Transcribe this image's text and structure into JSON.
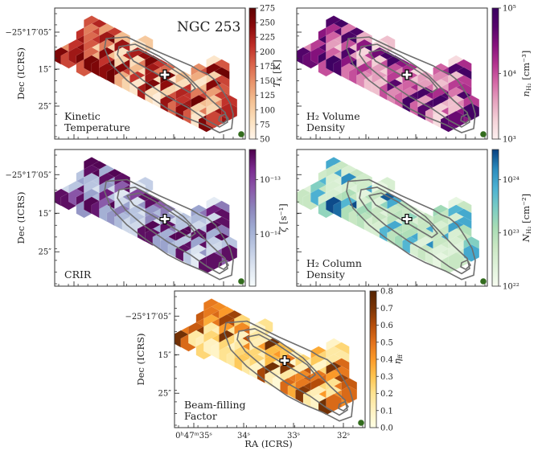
{
  "figure": {
    "object_name": "NGC 253",
    "ylabel": "Dec (ICRS)",
    "xlabel": "RA (ICRS)",
    "dec_ticks": [
      "−25°17′05″",
      "15″",
      "25″"
    ],
    "ra_ticks": [
      "0ʰ47ᵐ35ˢ",
      "34ˢ",
      "33ˢ",
      "32ˢ"
    ]
  },
  "chart_data": [
    {
      "type": "heatmap",
      "id": "tk",
      "title": "Kinetic Temperature",
      "label_lines": [
        "Kinetic",
        "Temperature"
      ],
      "colorbar_label": "T_K [K]",
      "colorbar_label_main": "T",
      "colorbar_label_sub": "K",
      "colorbar_label_unit": " [K]",
      "colormap": [
        "#fff5eb",
        "#fbe0bd",
        "#f4c193",
        "#e9956c",
        "#d9634a",
        "#be2d27",
        "#8b0a0b",
        "#5e0000"
      ],
      "scale": "linear",
      "range": [
        50,
        275
      ],
      "ticks": [
        "50",
        "75",
        "100",
        "125",
        "150",
        "175",
        "200",
        "225",
        "250",
        "275"
      ],
      "cells_values": [
        0.62,
        0.75,
        0.7,
        0.5,
        0.65,
        0.4,
        0.68,
        0.82,
        0.55,
        0.7,
        0.8,
        0.95,
        0.3,
        0.25,
        0.45,
        0.7,
        0.85,
        0.6,
        0.2,
        0.5,
        0.18,
        0.82,
        0.75,
        0.1,
        0.9,
        0.65,
        0.8,
        0.92,
        0.55,
        0.35,
        0.88,
        0.3,
        0.12,
        0.75,
        0.78,
        0.85,
        0.6,
        0.92,
        0.9,
        0.7,
        0.98,
        0.2,
        0.85,
        0.15,
        0.5,
        0.92,
        0.7,
        0.1,
        0.6,
        0.85,
        0.95,
        0.88,
        0.65,
        0.3,
        0.15,
        0.8,
        0.5,
        0.55,
        0.12,
        0.45,
        0.62,
        0.9,
        0.95,
        0.35,
        0.2,
        0.7,
        0.1,
        0.8,
        0.15,
        0.92,
        0.08,
        0.3,
        0.15,
        0.35,
        0.1,
        0.2,
        0.65,
        0.1,
        0.78,
        0.9,
        0.12,
        0.85,
        0.2,
        0.15,
        0.72,
        0.1,
        0.3,
        0.88,
        0.6,
        0.15,
        0.05,
        0.2
      ]
    },
    {
      "type": "heatmap",
      "id": "nh2",
      "title": "H2 Volume Density",
      "label_lines": [
        "H₂ Volume",
        "Density"
      ],
      "colorbar_label": "n_H2 [cm^-3]",
      "colorbar_label_main": "n",
      "colorbar_label_sub": "H₂",
      "colorbar_label_unit": " [cm⁻³]",
      "colormap": [
        "#fdf0ef",
        "#f5d2d8",
        "#e6a4bf",
        "#d56aa7",
        "#b3348f",
        "#86127d",
        "#56046b",
        "#3a0160"
      ],
      "scale": "log",
      "range": [
        1000.0,
        100000.0
      ],
      "ticks": [
        "10³",
        "10⁴",
        "10⁵"
      ],
      "cells_values": [
        0.9,
        0.95,
        0.7,
        0.6,
        0.88,
        0.4,
        0.92,
        0.95,
        0.45,
        0.3,
        0.92,
        0.95,
        0.25,
        0.2,
        0.35,
        0.55,
        0.85,
        0.3,
        0.15,
        0.5,
        0.2,
        0.7,
        0.95,
        0.1,
        0.88,
        0.8,
        0.72,
        0.95,
        0.45,
        0.35,
        0.9,
        0.3,
        0.12,
        0.55,
        0.78,
        0.95,
        0.5,
        0.98,
        0.92,
        0.7,
        0.98,
        0.2,
        0.45,
        0.15,
        0.5,
        0.95,
        0.7,
        0.1,
        0.6,
        0.4,
        0.5,
        0.6,
        0.4,
        0.3,
        0.15,
        0.5,
        0.35,
        0.6,
        0.12,
        0.45,
        0.62,
        0.9,
        0.95,
        0.35,
        0.2,
        0.3,
        0.2,
        0.55,
        0.15,
        0.5,
        0.18,
        0.3,
        0.25,
        0.35,
        0.3,
        0.2,
        0.55,
        0.2,
        0.5,
        0.85,
        0.4,
        0.45,
        0.6,
        0.3,
        0.42,
        0.2,
        0.3,
        0.55,
        0.6,
        0.35,
        0.45,
        0.4
      ]
    },
    {
      "type": "heatmap",
      "id": "crir",
      "title": "CRIR",
      "label_lines": [
        "CRIR"
      ],
      "colorbar_label": "zeta [s^-1]",
      "colorbar_label_main": "ζ",
      "colorbar_label_sub": "",
      "colorbar_label_unit": " [s⁻¹]",
      "colormap": [
        "#f7fcfd",
        "#dce4f0",
        "#bcc8e2",
        "#9eaad1",
        "#8c84bb",
        "#8a57a8",
        "#7a2a8f",
        "#4d004b"
      ],
      "scale": "log",
      "range": [
        3e-15,
        3e-13
      ],
      "ticks": [
        "10⁻¹⁴",
        "10⁻¹³"
      ],
      "cells_values": [
        0.98,
        0.98,
        0.3,
        0.95,
        0.98,
        0.4,
        0.98,
        0.45,
        0.35,
        0.3,
        0.95,
        0.45,
        0.95,
        0.25,
        0.2,
        0.3,
        0.95,
        0.3,
        0.15,
        0.5,
        0.2,
        0.7,
        0.95,
        0.1,
        0.95,
        0.95,
        0.72,
        0.95,
        0.45,
        0.35,
        0.9,
        0.3,
        0.12,
        0.55,
        0.78,
        0.95,
        0.5,
        0.98,
        0.92,
        0.7,
        0.98,
        0.2,
        0.45,
        0.15,
        0.5,
        0.95,
        0.7,
        0.1,
        0.6,
        0.4,
        0.5,
        0.6,
        0.4,
        0.3,
        0.15,
        0.5,
        0.35,
        0.6,
        0.12,
        0.45,
        0.62,
        0.9,
        0.95,
        0.35,
        0.2,
        0.3,
        0.2,
        0.55,
        0.15,
        0.5,
        0.18,
        0.3,
        0.25,
        0.35,
        0.3,
        0.2,
        0.95,
        0.2,
        0.95,
        0.98,
        0.4,
        0.95,
        0.6,
        0.3,
        0.98,
        0.2,
        0.3,
        0.98,
        0.6,
        0.95,
        0.45,
        0.4
      ]
    },
    {
      "type": "heatmap",
      "id": "NH2",
      "title": "H2 Column Density",
      "label_lines": [
        "H₂ Column",
        "Density"
      ],
      "colorbar_label": "N_H2 [cm^-2]",
      "colorbar_label_main": "N",
      "colorbar_label_sub": "H₂",
      "colorbar_label_unit": " [cm⁻²]",
      "colormap": [
        "#f7fcf0",
        "#e0f3db",
        "#cbe8c4",
        "#a8ddb5",
        "#7bccc4",
        "#4eb3d3",
        "#2b8cbe",
        "#084081"
      ],
      "scale": "log",
      "range": [
        1e+22,
        4e+24
      ],
      "ticks": [
        "10²²",
        "10²³",
        "10²⁴"
      ],
      "cells_values": [
        0.75,
        0.3,
        0.25,
        0.3,
        0.75,
        0.2,
        0.3,
        0.7,
        0.2,
        0.15,
        0.85,
        0.3,
        0.25,
        0.2,
        0.15,
        0.55,
        0.3,
        0.2,
        0.15,
        0.2,
        0.15,
        0.25,
        0.75,
        0.1,
        0.3,
        0.3,
        0.72,
        0.2,
        0.2,
        0.35,
        0.4,
        0.3,
        0.12,
        0.35,
        0.3,
        0.95,
        0.5,
        0.98,
        0.92,
        0.7,
        0.98,
        0.2,
        0.45,
        0.15,
        0.5,
        0.75,
        0.35,
        0.1,
        0.3,
        0.4,
        0.3,
        0.45,
        0.4,
        0.3,
        0.15,
        0.3,
        0.35,
        0.3,
        0.12,
        0.45,
        0.32,
        0.7,
        0.75,
        0.35,
        0.2,
        0.3,
        0.2,
        0.35,
        0.15,
        0.5,
        0.18,
        0.3,
        0.25,
        0.35,
        0.3,
        0.2,
        0.75,
        0.2,
        0.7,
        0.75,
        0.4,
        0.35,
        0.4,
        0.3,
        0.75,
        0.2,
        0.3,
        0.78,
        0.4,
        0.35,
        0.45,
        0.4
      ]
    },
    {
      "type": "heatmap",
      "id": "eff",
      "title": "Beam-filling Factor",
      "label_lines": [
        "Beam-filling",
        "Factor"
      ],
      "colorbar_label": "eta_ff",
      "colorbar_label_main": "η",
      "colorbar_label_sub": "ff",
      "colorbar_label_unit": "",
      "colormap": [
        "#ffffe5",
        "#fff1c0",
        "#fee391",
        "#fec44f",
        "#fb9a29",
        "#e2711b",
        "#b54d0a",
        "#7a3406",
        "#552403"
      ],
      "scale": "linear",
      "range": [
        0.0,
        0.8
      ],
      "ticks": [
        "0.0",
        "0.1",
        "0.2",
        "0.3",
        "0.4",
        "0.5",
        "0.6",
        "0.7",
        "0.8"
      ],
      "cells_values": [
        0.6,
        0.55,
        0.7,
        0.6,
        0.65,
        0.5,
        0.8,
        0.65,
        0.45,
        0.6,
        0.8,
        0.75,
        0.3,
        0.25,
        0.6,
        0.7,
        0.85,
        0.2,
        0.15,
        0.5,
        0.2,
        0.55,
        0.65,
        0.1,
        0.9,
        0.65,
        0.2,
        0.15,
        0.3,
        0.35,
        0.88,
        0.3,
        0.12,
        0.75,
        0.2,
        0.15,
        0.3,
        0.12,
        0.1,
        0.3,
        0.1,
        0.2,
        0.55,
        0.15,
        0.5,
        0.92,
        0.4,
        0.1,
        0.3,
        0.25,
        0.2,
        0.3,
        0.35,
        0.3,
        0.15,
        0.4,
        0.5,
        0.35,
        0.12,
        0.45,
        0.3,
        0.2,
        0.2,
        0.35,
        0.2,
        0.3,
        0.1,
        0.4,
        0.15,
        0.6,
        0.08,
        0.3,
        0.15,
        0.35,
        0.1,
        0.2,
        0.65,
        0.1,
        0.78,
        0.9,
        0.12,
        0.85,
        0.2,
        0.15,
        0.72,
        0.1,
        0.3,
        0.88,
        0.6,
        0.15,
        0.05,
        0.2
      ]
    }
  ]
}
